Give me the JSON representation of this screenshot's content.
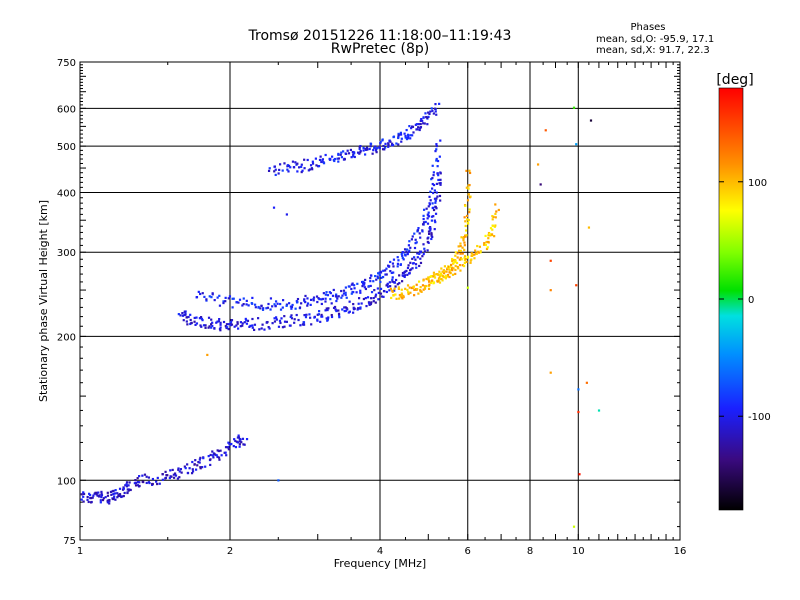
{
  "header": {
    "title_line1": "Tromsø 20151226 11:18:00–11:19:43",
    "title_line2": "RwPretec (8p)",
    "stats_title": "Phases",
    "stats_line1": "mean, sd,O: -95.9, 17.1",
    "stats_line2": "mean, sd,X:  91.7, 22.3"
  },
  "chart_data": {
    "type": "scatter",
    "xlabel": "Frequency [MHz]",
    "ylabel": "Stationary phase Virtual Height [km]",
    "x_scale": "log",
    "y_scale": "log",
    "xlim": [
      1,
      16
    ],
    "ylim": [
      75,
      750
    ],
    "grid": true,
    "x_ticks": [
      {
        "value": 1,
        "label": "1"
      },
      {
        "value": 2,
        "label": "2"
      },
      {
        "value": 4,
        "label": "4"
      },
      {
        "value": 6,
        "label": "6"
      },
      {
        "value": 8,
        "label": "8"
      },
      {
        "value": 10,
        "label": "10"
      },
      {
        "value": 16,
        "label": "16"
      }
    ],
    "x_gridlines": [
      2,
      4,
      6,
      8,
      10
    ],
    "y_ticks": [
      {
        "value": 75,
        "label": "75"
      },
      {
        "value": 100,
        "label": "100"
      },
      {
        "value": 200,
        "label": "200"
      },
      {
        "value": 300,
        "label": "300"
      },
      {
        "value": 400,
        "label": "400"
      },
      {
        "value": 500,
        "label": "500"
      },
      {
        "value": 600,
        "label": "600"
      },
      {
        "value": 750,
        "label": "750"
      }
    ],
    "y_gridlines": [
      100,
      200,
      300,
      400,
      500,
      600
    ],
    "colorbar": {
      "label": "[deg]",
      "range": [
        -180,
        180
      ],
      "ticks": [
        {
          "value": 100,
          "label": "100"
        },
        {
          "value": 0,
          "label": "0"
        },
        {
          "value": -100,
          "label": "-100"
        }
      ]
    },
    "traces": [
      {
        "x": [
          1.0,
          1.05,
          1.1,
          1.15,
          1.18,
          1.22,
          1.28,
          1.35,
          1.45,
          1.55,
          1.65,
          1.75,
          1.85,
          1.95,
          2.05,
          2.15
        ],
        "y": [
          93,
          92,
          92,
          92,
          93,
          95,
          98,
          100,
          101,
          103,
          106,
          108,
          112,
          116,
          120,
          123
        ],
        "phase": -110
      },
      {
        "x": [
          1.6,
          1.65,
          1.75,
          1.85,
          1.95,
          2.05,
          2.2,
          2.4,
          2.6,
          2.8,
          3.0,
          3.2,
          3.4,
          3.6,
          3.8,
          4.0,
          4.2,
          4.4,
          4.6,
          4.8,
          5.0,
          5.1,
          5.2,
          5.3
        ],
        "y": [
          222,
          218,
          214,
          212,
          211,
          211,
          212,
          213,
          215,
          217,
          220,
          224,
          228,
          233,
          239,
          246,
          254,
          264,
          277,
          293,
          318,
          345,
          385,
          450
        ],
        "phase": -105
      },
      {
        "x": [
          1.7,
          1.9,
          2.1,
          2.3,
          2.5,
          2.7,
          2.9,
          3.1,
          3.3,
          3.5,
          3.7,
          3.9,
          4.1,
          4.3,
          4.5,
          4.7,
          4.9,
          5.05,
          5.15,
          5.25
        ],
        "y": [
          246,
          238,
          235,
          234,
          234,
          235,
          237,
          240,
          244,
          249,
          255,
          263,
          272,
          284,
          299,
          318,
          345,
          380,
          430,
          520
        ],
        "phase": -95
      },
      {
        "x": [
          2.4,
          2.6,
          2.8,
          3.0,
          3.2,
          3.4,
          3.6,
          3.8,
          4.0,
          4.2,
          4.4,
          4.6,
          4.8,
          5.0,
          5.2
        ],
        "y": [
          445,
          450,
          455,
          462,
          470,
          478,
          487,
          495,
          502,
          510,
          520,
          535,
          552,
          575,
          610
        ],
        "phase": -100
      },
      {
        "x": [
          4.2,
          4.4,
          4.6,
          4.8,
          5.0,
          5.2,
          5.4,
          5.6,
          5.8,
          5.9,
          6.0,
          6.05
        ],
        "y": [
          245,
          247,
          250,
          254,
          259,
          265,
          272,
          282,
          300,
          325,
          370,
          450
        ],
        "phase": 100
      },
      {
        "x": [
          5.0,
          5.3,
          5.6,
          5.9,
          6.2,
          6.5,
          6.7,
          6.9
        ],
        "y": [
          262,
          268,
          276,
          286,
          298,
          313,
          335,
          370
        ],
        "phase": 95
      }
    ],
    "points": [
      {
        "x": 8.6,
        "y": 540,
        "phase": 140
      },
      {
        "x": 8.4,
        "y": 416,
        "phase": -140
      },
      {
        "x": 8.3,
        "y": 458,
        "phase": 110
      },
      {
        "x": 8.8,
        "y": 288,
        "phase": 150
      },
      {
        "x": 8.8,
        "y": 250,
        "phase": 120
      },
      {
        "x": 8.8,
        "y": 168,
        "phase": 110
      },
      {
        "x": 9.8,
        "y": 602,
        "phase": 20
      },
      {
        "x": 9.9,
        "y": 505,
        "phase": -40
      },
      {
        "x": 9.9,
        "y": 256,
        "phase": 150
      },
      {
        "x": 10.0,
        "y": 155,
        "phase": -60
      },
      {
        "x": 10.0,
        "y": 139,
        "phase": 160
      },
      {
        "x": 10.05,
        "y": 103,
        "phase": 170
      },
      {
        "x": 9.8,
        "y": 80,
        "phase": 60
      },
      {
        "x": 10.4,
        "y": 160,
        "phase": 130
      },
      {
        "x": 10.5,
        "y": 338,
        "phase": 100
      },
      {
        "x": 10.6,
        "y": 566,
        "phase": -160
      },
      {
        "x": 11.0,
        "y": 140,
        "phase": -10
      },
      {
        "x": 1.8,
        "y": 183,
        "phase": 110
      },
      {
        "x": 2.5,
        "y": 100,
        "phase": -70
      },
      {
        "x": 2.6,
        "y": 360,
        "phase": -100
      },
      {
        "x": 2.45,
        "y": 372,
        "phase": -95
      },
      {
        "x": 6.0,
        "y": 253,
        "phase": 60
      }
    ]
  }
}
